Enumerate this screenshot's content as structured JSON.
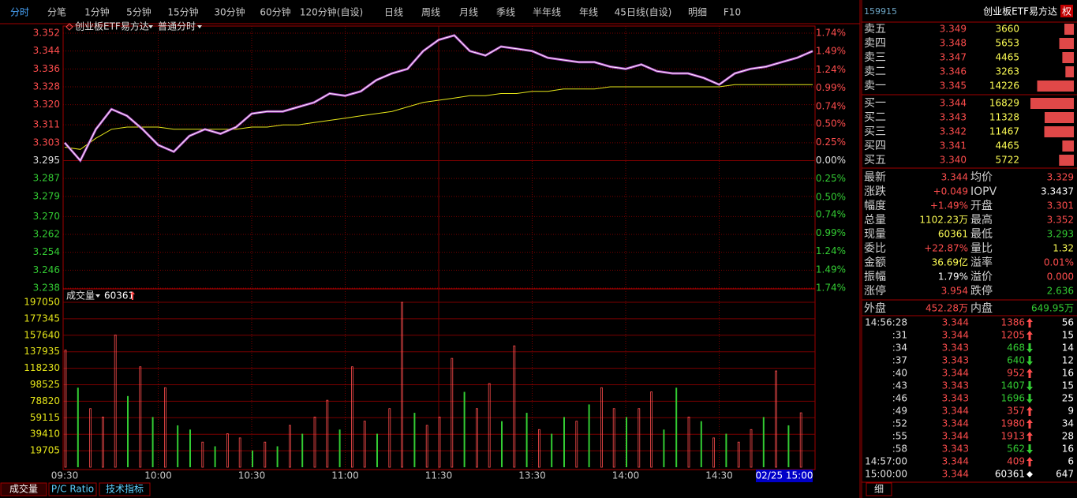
{
  "toolbar": {
    "tabs": [
      "分时",
      "分笔",
      "1分钟",
      "5分钟",
      "15分钟",
      "30分钟",
      "60分钟",
      "120分钟(自设)",
      "日线",
      "周线",
      "月线",
      "季线",
      "半年线",
      "年线",
      "45日线(自设)",
      "明细",
      "F10"
    ],
    "active": 0
  },
  "chart": {
    "type": "line",
    "title": "创业板ETF易方达",
    "mode": "普通分时",
    "x": [
      0,
      5,
      10,
      15,
      20,
      25,
      30,
      35,
      40,
      45,
      50,
      55,
      60,
      65,
      70,
      75,
      80,
      85,
      90,
      95,
      100,
      105,
      110,
      115,
      120,
      125,
      130,
      135,
      140,
      145,
      150,
      155,
      160,
      165,
      170,
      175,
      180,
      185,
      190,
      195,
      200,
      205,
      210,
      215,
      220,
      225,
      230,
      235,
      240
    ],
    "price": {
      "color": "#ffffff",
      "values": [
        3.303,
        3.295,
        3.309,
        3.318,
        3.315,
        3.309,
        3.302,
        3.299,
        3.306,
        3.309,
        3.307,
        3.31,
        3.316,
        3.317,
        3.317,
        3.319,
        3.321,
        3.325,
        3.324,
        3.326,
        3.331,
        3.334,
        3.336,
        3.344,
        3.349,
        3.351,
        3.344,
        3.342,
        3.346,
        3.345,
        3.344,
        3.341,
        3.34,
        3.339,
        3.339,
        3.337,
        3.336,
        3.338,
        3.335,
        3.334,
        3.334,
        3.332,
        3.329,
        3.334,
        3.336,
        3.337,
        3.339,
        3.341,
        3.344
      ]
    },
    "average": {
      "color": "#e6e619",
      "values": [
        3.301,
        3.3,
        3.305,
        3.309,
        3.31,
        3.31,
        3.31,
        3.309,
        3.309,
        3.309,
        3.309,
        3.309,
        3.31,
        3.31,
        3.311,
        3.311,
        3.312,
        3.313,
        3.314,
        3.315,
        3.316,
        3.317,
        3.319,
        3.321,
        3.322,
        3.323,
        3.324,
        3.324,
        3.325,
        3.325,
        3.326,
        3.326,
        3.327,
        3.327,
        3.327,
        3.328,
        3.328,
        3.328,
        3.328,
        3.328,
        3.328,
        3.328,
        3.328,
        3.329,
        3.329,
        3.329,
        3.329,
        3.329,
        3.329
      ]
    },
    "xlim": [
      0,
      240
    ],
    "xticks": [
      {
        "value": 0,
        "label": "09:30"
      },
      {
        "value": 30,
        "label": "10:00"
      },
      {
        "value": 60,
        "label": "10:30"
      },
      {
        "value": 90,
        "label": "11:00"
      },
      {
        "value": 120,
        "label": "11:30"
      },
      {
        "value": 150,
        "label": "13:30"
      },
      {
        "value": 180,
        "label": "14:00"
      },
      {
        "value": 210,
        "label": "14:30"
      }
    ],
    "cursor": {
      "value": 240,
      "label": "02/25 15:00"
    },
    "ylim": [
      3.238,
      3.352
    ],
    "yticks": [
      3.352,
      3.344,
      3.336,
      3.328,
      {
        "value": 3.32,
        "label": "3.320"
      },
      3.311,
      3.303,
      3.295,
      3.287,
      3.279,
      {
        "value": 3.27,
        "label": "3.270"
      },
      3.262,
      3.254,
      3.246,
      3.238
    ],
    "y2lim": [
      -1.74,
      1.74
    ],
    "y2ticks": [
      {
        "value": 1.74,
        "label": "1.74%"
      },
      {
        "value": 1.49,
        "label": "1.49%"
      },
      {
        "value": 1.24,
        "label": "1.24%"
      },
      {
        "value": 0.99,
        "label": "0.99%"
      },
      {
        "value": 0.74,
        "label": "0.74%"
      },
      {
        "value": 0.5,
        "label": "0.50%"
      },
      {
        "value": 0.25,
        "label": "0.25%"
      },
      {
        "value": 0,
        "label": "0.00%"
      },
      {
        "value": -0.25,
        "label": "0.25%"
      },
      {
        "value": -0.5,
        "label": "0.50%"
      },
      {
        "value": -0.74,
        "label": "0.74%"
      },
      {
        "value": -0.99,
        "label": "0.99%"
      },
      {
        "value": -1.24,
        "label": "1.24%"
      },
      {
        "value": -1.49,
        "label": "1.49%"
      },
      {
        "value": -1.74,
        "label": "1.74%"
      }
    ],
    "up_color": "#ff4d4d",
    "down_color": "#33cc33",
    "grid": true
  },
  "volume": {
    "type": "bar",
    "title": "成交量",
    "current": 60361,
    "x": [
      0,
      4,
      8,
      12,
      16,
      20,
      24,
      28,
      32,
      36,
      40,
      44,
      48,
      52,
      56,
      60,
      64,
      68,
      72,
      76,
      80,
      84,
      88,
      92,
      96,
      100,
      104,
      108,
      112,
      116,
      120,
      124,
      128,
      132,
      136,
      140,
      144,
      148,
      152,
      156,
      160,
      164,
      168,
      172,
      176,
      180,
      184,
      188,
      192,
      196,
      200,
      204,
      208,
      212,
      216,
      220,
      224,
      228,
      232,
      236
    ],
    "values": [
      140000,
      95000,
      70000,
      60000,
      158000,
      85000,
      120000,
      60000,
      95000,
      50000,
      45000,
      30000,
      25000,
      40000,
      35000,
      20000,
      30000,
      25000,
      50000,
      40000,
      60000,
      80000,
      45000,
      120000,
      55000,
      40000,
      70000,
      197000,
      65000,
      50000,
      60000,
      130000,
      90000,
      70000,
      100000,
      55000,
      145000,
      65000,
      45000,
      40000,
      60000,
      55000,
      75000,
      95000,
      70000,
      60000,
      70000,
      90000,
      45000,
      95000,
      60000,
      55000,
      35000,
      40000,
      30000,
      45000,
      60000,
      115000,
      50000,
      65000
    ],
    "up": [
      1,
      0,
      1,
      1,
      1,
      0,
      1,
      0,
      1,
      0,
      0,
      1,
      0,
      1,
      1,
      0,
      1,
      0,
      1,
      0,
      1,
      1,
      0,
      1,
      1,
      0,
      1,
      1,
      0,
      1,
      1,
      1,
      0,
      1,
      1,
      0,
      1,
      0,
      1,
      0,
      0,
      1,
      0,
      1,
      1,
      0,
      1,
      1,
      0,
      0,
      1,
      0,
      1,
      0,
      1,
      1,
      0,
      1,
      0,
      1
    ],
    "xlim": [
      0,
      240
    ],
    "ylim": [
      0,
      197050
    ],
    "yticks": [
      19705,
      39410,
      59115,
      78820,
      98525,
      118230,
      137935,
      157640,
      177345,
      197050
    ]
  },
  "bottom_tabs": [
    "成交量",
    "P/C Ratio",
    "技术指标"
  ],
  "quote": {
    "code": "159915",
    "name": "创业板ETF易方达",
    "badge": "权",
    "asks": [
      {
        "label": "卖五",
        "price": "3.349",
        "volume": 3660
      },
      {
        "label": "卖四",
        "price": "3.348",
        "volume": 5653
      },
      {
        "label": "卖三",
        "price": "3.347",
        "volume": 4465
      },
      {
        "label": "卖二",
        "price": "3.346",
        "volume": 3263
      },
      {
        "label": "卖一",
        "price": "3.345",
        "volume": 14226
      }
    ],
    "bids": [
      {
        "label": "买一",
        "price": "3.344",
        "volume": 16829
      },
      {
        "label": "买二",
        "price": "3.343",
        "volume": 11328
      },
      {
        "label": "买三",
        "price": "3.342",
        "volume": 11467
      },
      {
        "label": "买四",
        "price": "3.341",
        "volume": 4465
      },
      {
        "label": "买五",
        "price": "3.340",
        "volume": 5722
      }
    ],
    "stats": [
      {
        "label": "最新",
        "value": "3.344",
        "label2": "均价",
        "value2": "3.329"
      },
      {
        "label": "涨跌",
        "value": "+0.049",
        "label2": "IOPV",
        "value2": "3.3437"
      },
      {
        "label": "幅度",
        "value": "+1.49%",
        "label2": "开盘",
        "value2": "3.301"
      },
      {
        "label": "总量",
        "value": "1102.23万",
        "label2": "最高",
        "value2": "3.352"
      },
      {
        "label": "现量",
        "value": "60361",
        "label2": "最低",
        "value2": "3.293"
      },
      {
        "label": "委比",
        "value": "+22.87%",
        "label2": "量比",
        "value2": "1.32"
      },
      {
        "label": "金额",
        "value": "36.69亿",
        "label2": "溢率",
        "value2": "0.01%"
      },
      {
        "label": "振幅",
        "value": "1.79%",
        "label2": "溢价",
        "value2": "0.000"
      },
      {
        "label": "涨停",
        "value": "3.954",
        "label2": "跌停",
        "value2": "2.636"
      }
    ],
    "flow": {
      "label": "外盘",
      "value": "452.28万",
      "label2": "内盘",
      "value2": "649.95万"
    },
    "trades": [
      {
        "time": "14:56:28",
        "price": "3.344",
        "volume": 1386,
        "dir": "up",
        "count": 56
      },
      {
        "time": ":31",
        "price": "3.344",
        "volume": 1205,
        "dir": "up",
        "count": 15
      },
      {
        "time": ":34",
        "price": "3.343",
        "volume": 468,
        "dir": "down",
        "count": 14
      },
      {
        "time": ":37",
        "price": "3.343",
        "volume": 640,
        "dir": "down",
        "count": 12
      },
      {
        "time": ":40",
        "price": "3.344",
        "volume": 952,
        "dir": "up",
        "count": 16
      },
      {
        "time": ":43",
        "price": "3.343",
        "volume": 1407,
        "dir": "down",
        "count": 15
      },
      {
        "time": ":46",
        "price": "3.343",
        "volume": 1696,
        "dir": "down",
        "count": 25
      },
      {
        "time": ":49",
        "price": "3.344",
        "volume": 357,
        "dir": "up",
        "count": 9
      },
      {
        "time": ":52",
        "price": "3.344",
        "volume": 1980,
        "dir": "up",
        "count": 34
      },
      {
        "time": ":55",
        "price": "3.344",
        "volume": 1913,
        "dir": "up",
        "count": 28
      },
      {
        "time": ":58",
        "price": "3.343",
        "volume": 562,
        "dir": "down",
        "count": 16
      },
      {
        "time": "14:57:00",
        "price": "3.344",
        "volume": 409,
        "dir": "up",
        "count": 6
      },
      {
        "time": "15:00:00",
        "price": "3.344",
        "volume": 60361,
        "dir": "neutral",
        "count": 647
      }
    ],
    "tab": "细"
  }
}
